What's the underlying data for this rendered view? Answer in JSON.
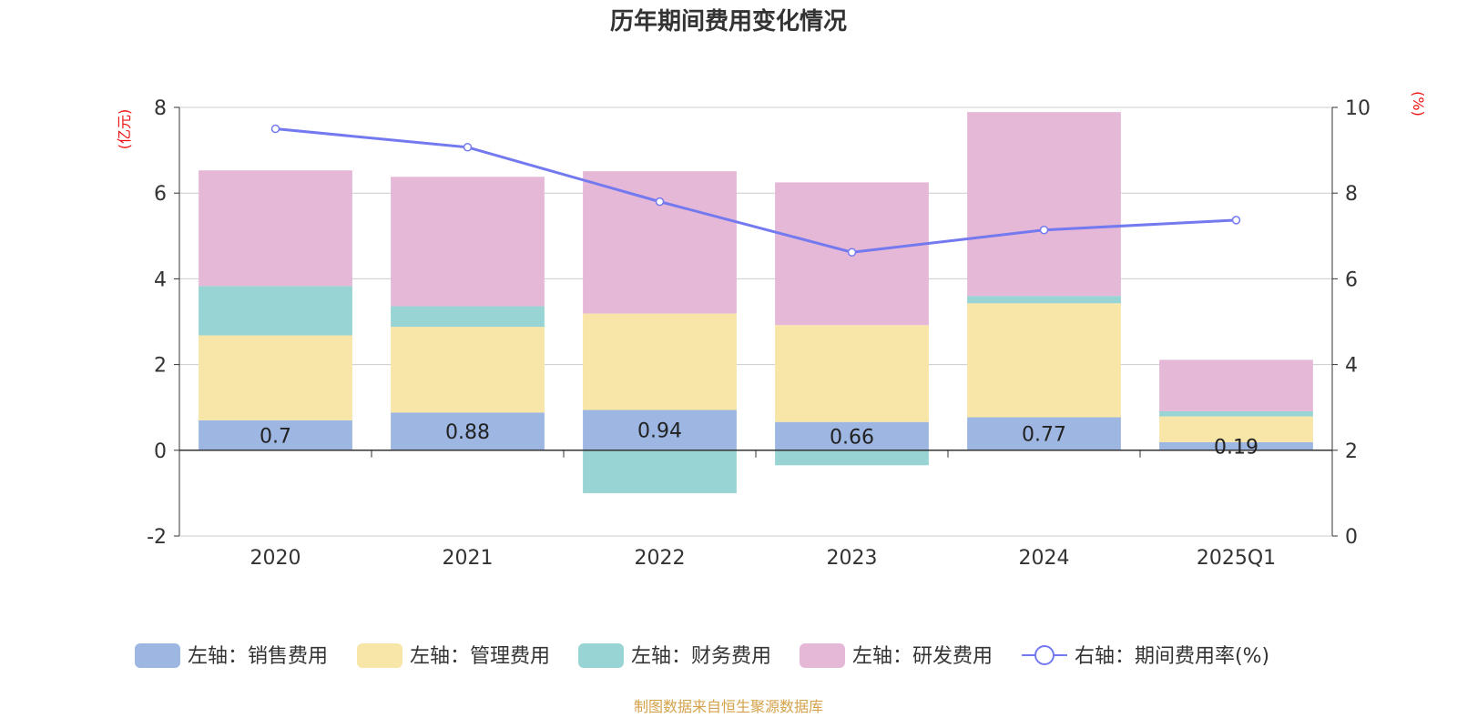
{
  "chart_data": {
    "type": "bar",
    "title": "历年期间费用变化情况",
    "categories": [
      "2020",
      "2021",
      "2022",
      "2023",
      "2024",
      "2025Q1"
    ],
    "left_axis": {
      "unit_label": "(亿元)",
      "ylim": [
        -2,
        8
      ],
      "ticks": [
        "-2",
        "0",
        "2",
        "4",
        "6",
        "8"
      ]
    },
    "right_axis": {
      "unit_label": "(%)",
      "ylim": [
        0,
        10
      ],
      "ticks": [
        "0",
        "2",
        "4",
        "6",
        "8",
        "10"
      ]
    },
    "grid": true,
    "series": [
      {
        "name": "左轴：销售费用",
        "type": "bar",
        "stack": true,
        "color": "#9db6e2",
        "values": [
          0.7,
          0.88,
          0.94,
          0.66,
          0.77,
          0.19
        ],
        "labels": [
          "0.7",
          "0.88",
          "0.94",
          "0.66",
          "0.77",
          "0.19"
        ]
      },
      {
        "name": "左轴：管理费用",
        "type": "bar",
        "stack": true,
        "color": "#f8e6a8",
        "values": [
          1.98,
          2.0,
          2.25,
          2.26,
          2.66,
          0.6
        ]
      },
      {
        "name": "左轴：财务费用",
        "type": "bar",
        "stack": true,
        "color": "#98d4d4",
        "values": [
          1.15,
          0.48,
          -1.0,
          -0.35,
          0.17,
          0.12
        ]
      },
      {
        "name": "左轴：研发费用",
        "type": "bar",
        "stack": true,
        "color": "#e6b8d8",
        "values": [
          2.7,
          3.02,
          3.32,
          3.33,
          4.29,
          1.2
        ]
      },
      {
        "name": "右轴：期间费用率(%)",
        "type": "line",
        "axis": "right",
        "color": "#7379ee",
        "values": [
          9.5,
          9.07,
          7.8,
          6.62,
          7.14,
          7.37
        ]
      }
    ],
    "legend_position": "bottom"
  },
  "source": "制图数据来自恒生聚源数据库"
}
